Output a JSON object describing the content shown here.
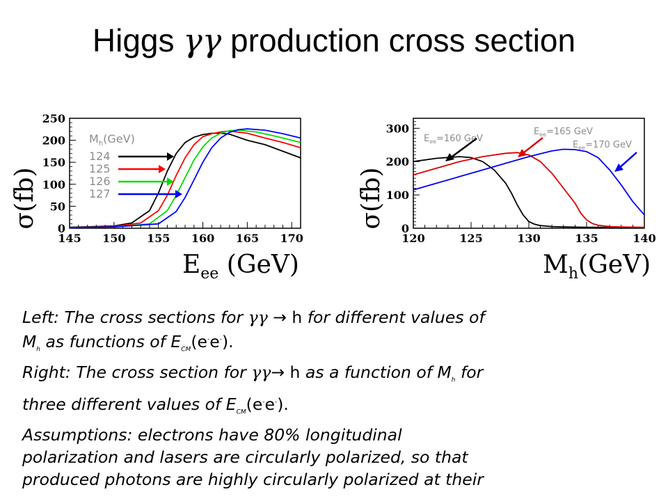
{
  "title": {
    "pre": "Higgs ",
    "gamma": "γγ",
    "post": " production cross section"
  },
  "left": {
    "ylabel": "σ(fb)",
    "xlabel_main": "E",
    "xlabel_sub": "ee",
    "xlabel_unit": " (GeV)",
    "legend_title": "M",
    "legend_title_sub": "h",
    "legend_title_unit": "(GeV)"
  },
  "right": {
    "ylabel": "σ(fb)",
    "xlabel_main": "M",
    "xlabel_sub": "h",
    "xlabel_unit": "(GeV)",
    "ann_e": "E",
    "ann_sub": "ee",
    "ann1_val": "=160 GeV",
    "ann2_val": "=165 GeV",
    "ann3_val": "=170 GeV"
  },
  "chart_data": [
    {
      "type": "line",
      "xlabel": "Eee (GeV)",
      "ylabel": "σ(fb)",
      "xlim": [
        145,
        171
      ],
      "ylim": [
        0,
        250
      ],
      "xticks": [
        145,
        150,
        155,
        160,
        165,
        170
      ],
      "yticks": [
        0,
        50,
        100,
        150,
        200,
        250
      ],
      "legend_title": "Mh(GeV)",
      "series": [
        {
          "name": "124",
          "color": "#000000",
          "x": [
            145,
            150,
            152,
            154,
            155,
            156,
            157,
            158,
            159,
            160,
            161,
            162,
            163,
            165,
            167,
            169,
            171
          ],
          "y": [
            2,
            5,
            12,
            40,
            80,
            130,
            170,
            195,
            207,
            213,
            216,
            216,
            214,
            200,
            190,
            175,
            160
          ]
        },
        {
          "name": "125",
          "color": "#ff0000",
          "x": [
            145,
            150,
            153,
            155,
            156,
            157,
            158,
            159,
            160,
            161,
            162,
            163,
            165,
            167,
            169,
            171
          ],
          "y": [
            1,
            4,
            12,
            40,
            75,
            120,
            160,
            190,
            208,
            215,
            219,
            221,
            216,
            205,
            195,
            183
          ]
        },
        {
          "name": "126",
          "color": "#00dd00",
          "x": [
            145,
            150,
            154,
            156,
            157,
            158,
            159,
            160,
            161,
            162,
            163,
            164,
            166,
            168,
            171
          ],
          "y": [
            1,
            3,
            10,
            40,
            75,
            115,
            155,
            185,
            205,
            216,
            222,
            223,
            219,
            210,
            195
          ]
        },
        {
          "name": "127",
          "color": "#0000ff",
          "x": [
            145,
            150,
            155,
            157,
            158,
            159,
            160,
            161,
            162,
            163,
            164,
            165,
            167,
            169,
            171
          ],
          "y": [
            1,
            3,
            10,
            38,
            70,
            110,
            150,
            183,
            205,
            218,
            224,
            226,
            223,
            215,
            205
          ]
        }
      ]
    },
    {
      "type": "line",
      "xlabel": "Mh(GeV)",
      "ylabel": "σ(fb)",
      "xlim": [
        120,
        140
      ],
      "ylim": [
        0,
        330
      ],
      "xticks": [
        120,
        125,
        130,
        135,
        140
      ],
      "yticks": [
        0,
        100,
        200,
        300
      ],
      "series": [
        {
          "name": "Eee=160 GeV",
          "color": "#000000",
          "x": [
            120,
            122,
            124,
            125,
            126,
            127,
            128,
            128.5,
            129,
            129.5,
            130,
            130.5,
            131,
            132,
            133,
            135,
            140
          ],
          "y": [
            200,
            210,
            215,
            212,
            200,
            175,
            135,
            105,
            70,
            40,
            20,
            12,
            8,
            5,
            4,
            3,
            2
          ]
        },
        {
          "name": "Eee=165 GeV",
          "color": "#dd0000",
          "x": [
            120,
            122,
            124,
            126,
            128,
            129,
            130,
            131,
            132,
            133,
            134,
            134.5,
            135,
            135.5,
            136,
            137,
            138,
            140
          ],
          "y": [
            160,
            180,
            200,
            215,
            225,
            227,
            220,
            200,
            165,
            120,
            75,
            45,
            25,
            14,
            9,
            5,
            4,
            3
          ]
        },
        {
          "name": "Eee=170 GeV",
          "color": "#0000ee",
          "x": [
            120,
            122,
            124,
            126,
            128,
            130,
            132,
            133,
            134,
            135,
            136,
            137,
            138,
            139,
            140
          ],
          "y": [
            115,
            135,
            155,
            175,
            195,
            215,
            232,
            237,
            236,
            230,
            212,
            175,
            130,
            80,
            40
          ]
        }
      ]
    }
  ],
  "caption": {
    "l1a": "Left: The cross sections for ",
    "l1g": "γγ",
    "l1b": " → h",
    "l1c": " for different values of",
    "l2a": "M",
    "l2sub": "h",
    "l2b": " as functions of E",
    "l2cm": "CM",
    "l2c": "(e",
    "l2d": "e",
    "l2e": ").",
    "l3a": "Right: The cross section for ",
    "l3g": "γγ",
    "l3b": "→ h",
    "l3c": " as a function of M",
    "l3sub": "h",
    "l3d": " for",
    "l4a": "three different values of E",
    "l4cm": "CM",
    "l4b": "(e",
    "l4c": "e",
    "l4d": ").",
    "l5": "Assumptions: electrons have 80% longitudinal",
    "l6": "polarization and lasers are circularly polarized, so that",
    "l7": "produced photons are highly circularly polarized at their"
  }
}
